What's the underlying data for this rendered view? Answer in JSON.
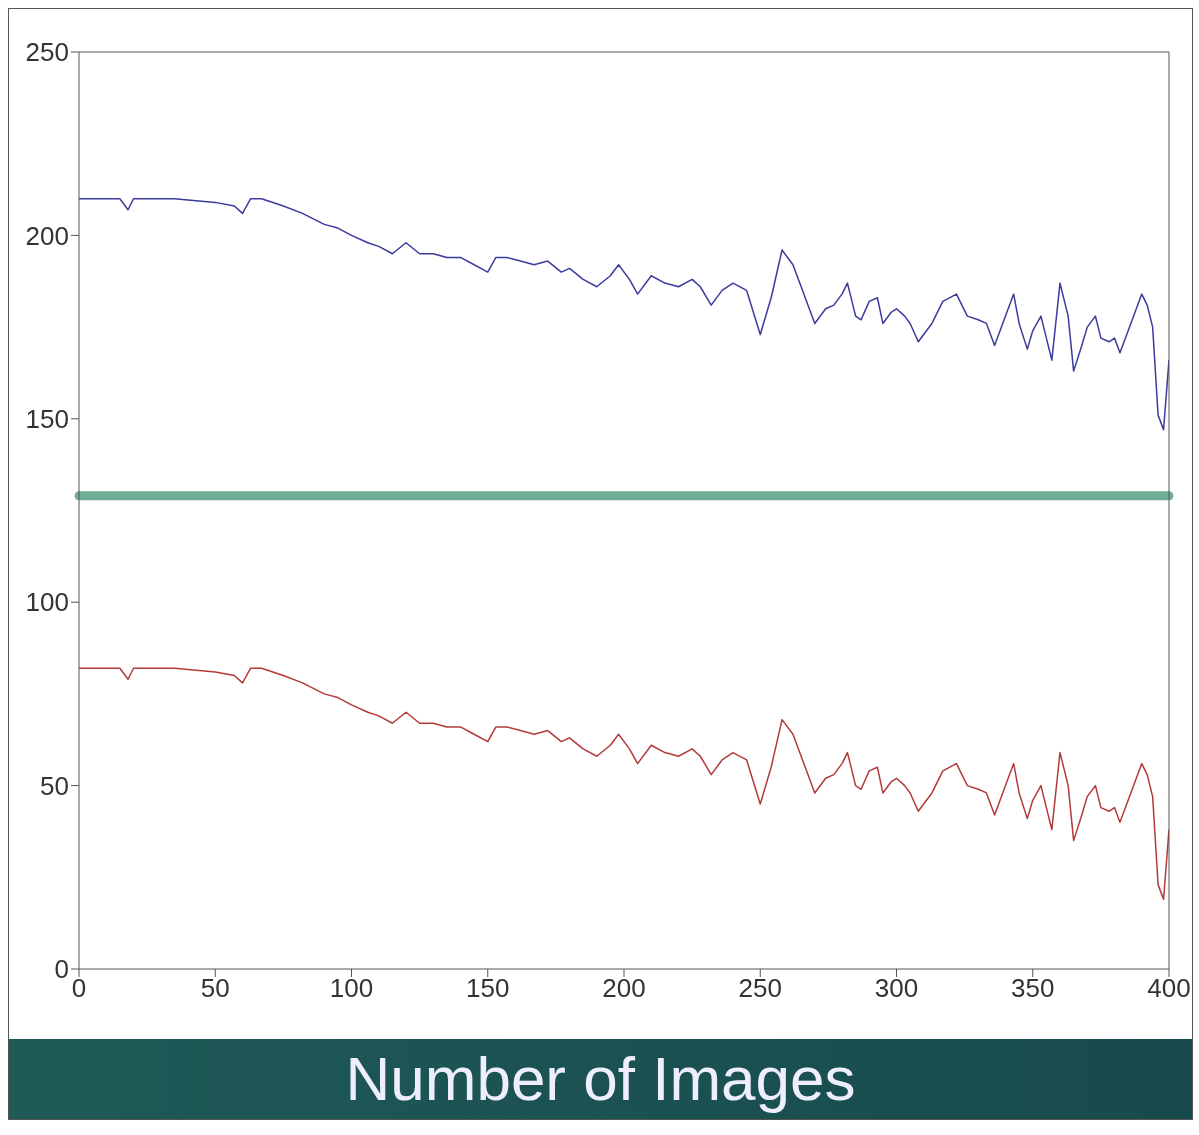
{
  "chart_data": {
    "type": "line",
    "xlabel": "Number of Images",
    "xlim": [
      0,
      400
    ],
    "xticks": [
      0,
      50,
      100,
      150,
      200,
      250,
      300,
      350,
      400
    ],
    "ylim": [
      0,
      250
    ],
    "yticks": [
      0,
      50,
      100,
      150,
      200,
      250
    ],
    "marker": "none",
    "line_style": "solid",
    "ref_lines": [
      {
        "axis": "y",
        "value": 129,
        "color": "#6fae94"
      }
    ],
    "series": [
      {
        "color": "#3b3b9e",
        "x": [
          0,
          15,
          18,
          20,
          35,
          50,
          57,
          60,
          63,
          67,
          75,
          82,
          90,
          95,
          100,
          106,
          110,
          115,
          120,
          125,
          130,
          135,
          140,
          145,
          150,
          153,
          157,
          162,
          167,
          172,
          177,
          180,
          185,
          190,
          195,
          198,
          202,
          205,
          210,
          215,
          220,
          225,
          228,
          232,
          236,
          240,
          245,
          250,
          254,
          258,
          262,
          266,
          270,
          274,
          277,
          280,
          282,
          285,
          287,
          290,
          293,
          295,
          298,
          300,
          303,
          305,
          308,
          311,
          313,
          317,
          322,
          326,
          330,
          333,
          336,
          340,
          343,
          345,
          348,
          350,
          353,
          357,
          360,
          363,
          365,
          368,
          370,
          373,
          375,
          378,
          380,
          382,
          386,
          390,
          392,
          394,
          396,
          398,
          400
        ],
        "values": [
          210,
          210,
          207,
          210,
          210,
          209,
          208,
          206,
          210,
          210,
          208,
          206,
          203,
          202,
          200,
          198,
          197,
          195,
          198,
          195,
          195,
          194,
          194,
          192,
          190,
          194,
          194,
          193,
          192,
          193,
          190,
          191,
          188,
          186,
          189,
          192,
          188,
          184,
          189,
          187,
          186,
          188,
          186,
          181,
          185,
          187,
          185,
          173,
          183,
          196,
          192,
          184,
          176,
          180,
          181,
          184,
          187,
          178,
          177,
          182,
          183,
          176,
          179,
          180,
          178,
          176,
          171,
          174,
          176,
          182,
          184,
          178,
          177,
          176,
          170,
          178,
          184,
          176,
          169,
          174,
          178,
          166,
          187,
          178,
          163,
          170,
          175,
          178,
          172,
          171,
          172,
          168,
          176,
          184,
          181,
          175,
          151,
          147,
          166
        ]
      },
      {
        "color": "#b33a3a",
        "x": [
          0,
          15,
          18,
          20,
          35,
          50,
          57,
          60,
          63,
          67,
          75,
          82,
          90,
          95,
          100,
          106,
          110,
          115,
          120,
          125,
          130,
          135,
          140,
          145,
          150,
          153,
          157,
          162,
          167,
          172,
          177,
          180,
          185,
          190,
          195,
          198,
          202,
          205,
          210,
          215,
          220,
          225,
          228,
          232,
          236,
          240,
          245,
          250,
          254,
          258,
          262,
          266,
          270,
          274,
          277,
          280,
          282,
          285,
          287,
          290,
          293,
          295,
          298,
          300,
          303,
          305,
          308,
          311,
          313,
          317,
          322,
          326,
          330,
          333,
          336,
          340,
          343,
          345,
          348,
          350,
          353,
          357,
          360,
          363,
          365,
          368,
          370,
          373,
          375,
          378,
          380,
          382,
          386,
          390,
          392,
          394,
          396,
          398,
          400
        ],
        "values": [
          82,
          82,
          79,
          82,
          82,
          81,
          80,
          78,
          82,
          82,
          80,
          78,
          75,
          74,
          72,
          70,
          69,
          67,
          70,
          67,
          67,
          66,
          66,
          64,
          62,
          66,
          66,
          65,
          64,
          65,
          62,
          63,
          60,
          58,
          61,
          64,
          60,
          56,
          61,
          59,
          58,
          60,
          58,
          53,
          57,
          59,
          57,
          45,
          55,
          68,
          64,
          56,
          48,
          52,
          53,
          56,
          59,
          50,
          49,
          54,
          55,
          48,
          51,
          52,
          50,
          48,
          43,
          46,
          48,
          54,
          56,
          50,
          49,
          48,
          42,
          50,
          56,
          48,
          41,
          46,
          50,
          38,
          59,
          50,
          35,
          42,
          47,
          50,
          44,
          43,
          44,
          40,
          48,
          56,
          53,
          47,
          23,
          19,
          38
        ]
      }
    ]
  }
}
